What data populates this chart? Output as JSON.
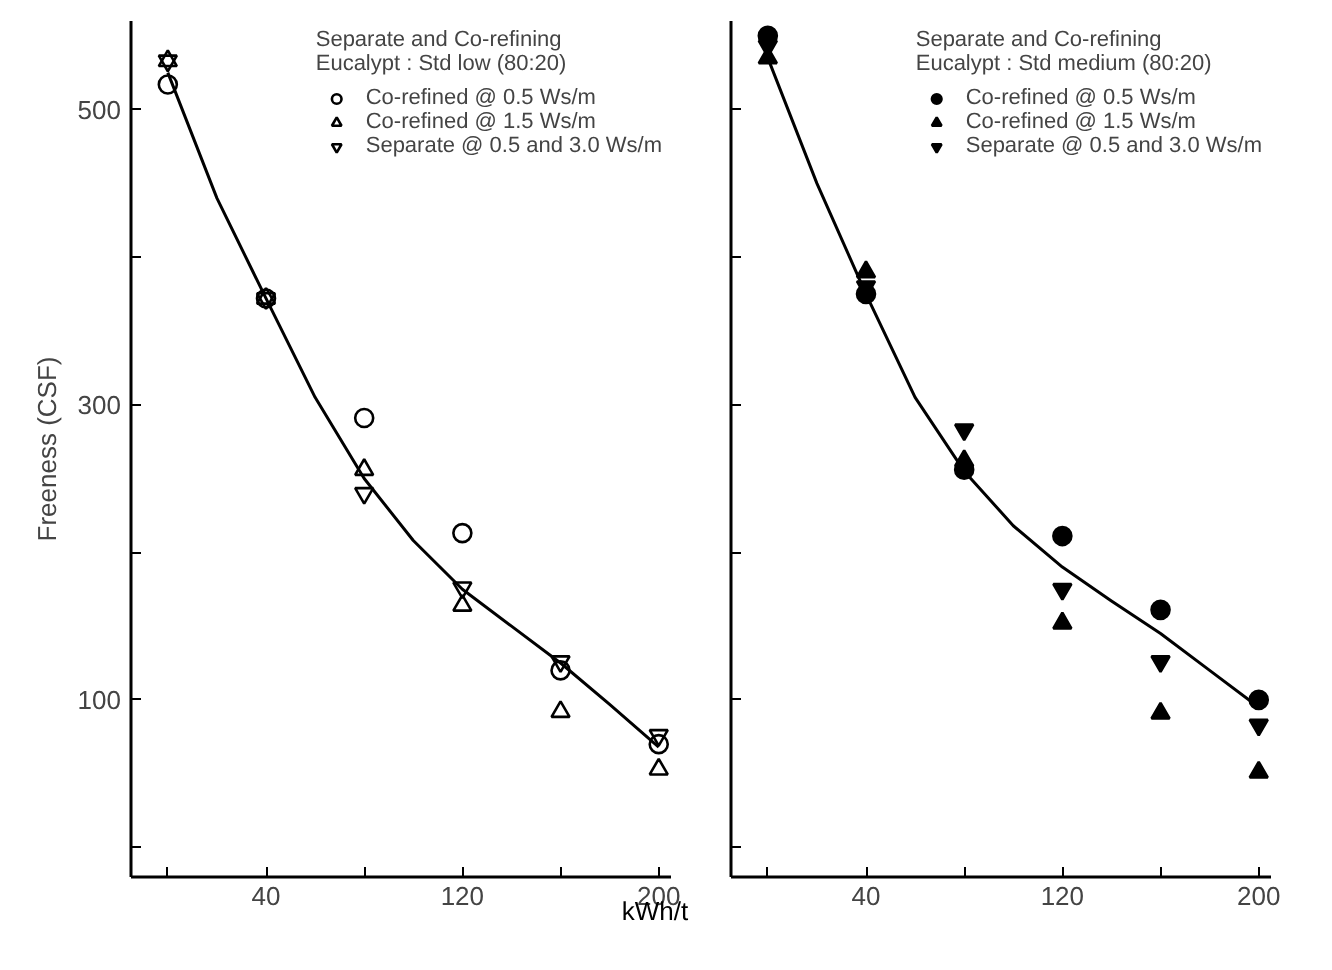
{
  "chart_data": [
    {
      "type": "scatter",
      "ylabel": "Freeness (CSF)",
      "xlabel": "kWh/t",
      "legend_title": "Separate and Co-refining\nEucalypt : Std low (80:20)",
      "legend": "top right",
      "grid": false,
      "xlim": [
        -15,
        205
      ],
      "xticks": [
        {
          "value": 0,
          "label": null
        },
        40,
        {
          "value": 80,
          "label": null
        },
        120,
        {
          "value": 160,
          "label": null
        },
        200
      ],
      "ylim": [
        -20,
        560
      ],
      "yticks": [
        {
          "value": 0,
          "label": null
        },
        100,
        {
          "value": 200,
          "label": null
        },
        300,
        {
          "value": 400,
          "label": null
        },
        500
      ],
      "x": [
        0,
        40,
        80,
        120,
        160,
        200
      ],
      "series": [
        {
          "name": "Co-refined @ 0.5 Ws/m",
          "color": "#000000",
          "marker": "circle",
          "values": [
            517,
            372,
            291,
            213,
            120,
            70
          ]
        },
        {
          "name": "Co-refined @ 1.5 Ws/m",
          "color": "#000000",
          "marker": "triangle",
          "values": [
            533,
            372,
            256,
            164,
            92,
            53
          ]
        },
        {
          "name": "Separate @ 0.5 and 3.0 Ws/m",
          "color": "#000000",
          "values": [
            533,
            372,
            240,
            176,
            126,
            76
          ]
        },
        {
          "type": "line",
          "color": "#000000",
          "marker": "none",
          "line_style": "solid",
          "x": [
            0,
            20,
            40,
            60,
            80,
            100,
            120,
            140,
            160,
            180,
            200
          ],
          "values": [
            525,
            440,
            372,
            305,
            250,
            208,
            175,
            150,
            125,
            97,
            68
          ]
        }
      ]
    },
    {
      "type": "scatter",
      "legend_title": "Separate and Co-refining\nEucalypt : Std medium (80:20)",
      "legend": "top right",
      "grid": false,
      "tick_labels": "x",
      "xlim": [
        -15,
        205
      ],
      "xticks": [
        {
          "value": 0,
          "label": null
        },
        40,
        {
          "value": 80,
          "label": null
        },
        120,
        {
          "value": 160,
          "label": null
        },
        200
      ],
      "ylim": [
        -20,
        560
      ],
      "yticks": [
        {
          "value": 0,
          "label": null
        },
        {
          "value": 100,
          "label": null
        },
        {
          "value": 200,
          "label": null
        },
        {
          "value": 300,
          "label": null
        },
        {
          "value": 400,
          "label": null
        },
        {
          "value": 500,
          "label": null
        }
      ],
      "x": [
        0,
        40,
        80,
        120,
        160,
        200
      ],
      "series": [
        {
          "name": "Co-refined @ 0.5 Ws/m",
          "color": "#000000",
          "marker": "circle",
          "values": [
            550,
            375,
            256,
            211,
            161,
            100
          ]
        },
        {
          "name": "Co-refined @ 1.5 Ws/m",
          "color": "#000000",
          "marker": "triangle",
          "values": [
            535,
            390,
            262,
            152,
            91,
            51
          ]
        },
        {
          "name": "Separate @ 0.5 and 3.0 Ws/m",
          "color": "#000000",
          "values": [
            543,
            380,
            283,
            175,
            126,
            83
          ]
        },
        {
          "type": "line",
          "color": "#000000",
          "marker": "none",
          "line_style": "solid",
          "x": [
            0,
            20,
            40,
            60,
            80,
            100,
            120,
            140,
            160,
            180,
            200
          ],
          "values": [
            535,
            450,
            375,
            305,
            255,
            218,
            190,
            167,
            145,
            120,
            95
          ]
        }
      ]
    }
  ]
}
